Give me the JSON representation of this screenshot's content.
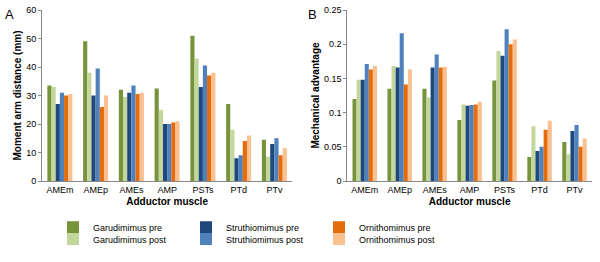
{
  "chart_data": [
    {
      "type": "bar",
      "title": "A",
      "x_label": "Adductor muscle",
      "y_label": "Moment arm distance (mm)",
      "categories": [
        "AMEm",
        "AMEp",
        "AMEs",
        "AMP",
        "PSTs",
        "PTd",
        "PTv"
      ],
      "series": [
        {
          "name": "Garudimimus pre",
          "color": "#77933C",
          "values": [
            33.5,
            49,
            32,
            32.5,
            51,
            27,
            14.5
          ]
        },
        {
          "name": "Garudimimus post",
          "color": "#C3D69B",
          "values": [
            33,
            38,
            29.5,
            25,
            43,
            18,
            8.5
          ]
        },
        {
          "name": "Struthiomimus pre",
          "color": "#1F497D",
          "values": [
            27,
            30,
            31,
            20,
            33,
            8,
            13
          ]
        },
        {
          "name": "Struthiomimus post",
          "color": "#4F81BD",
          "values": [
            31,
            39.5,
            33.5,
            20,
            40.5,
            9,
            15
          ]
        },
        {
          "name": "Ornithomimus pre",
          "color": "#E46C0A",
          "values": [
            30,
            26,
            30.5,
            20.5,
            37,
            14,
            9
          ]
        },
        {
          "name": "Ornithomimus post",
          "color": "#FAC090",
          "values": [
            30.5,
            30,
            31,
            21,
            38,
            16,
            11.5
          ]
        }
      ],
      "ylim": [
        0,
        60
      ],
      "yticks": [
        0,
        10,
        20,
        30,
        40,
        50,
        60
      ],
      "grid": false,
      "legend": "bottom"
    },
    {
      "type": "bar",
      "title": "B",
      "x_label": "Adductor muscle",
      "y_label": "Mechanical advantage",
      "categories": [
        "AMEm",
        "AMEp",
        "AMEs",
        "AMP",
        "PSTs",
        "PTd",
        "PTv"
      ],
      "series": [
        {
          "name": "Garudimimus pre",
          "color": "#77933C",
          "values": [
            0.12,
            0.135,
            0.135,
            0.089,
            0.147,
            0.035,
            0.057
          ]
        },
        {
          "name": "Garudimimus post",
          "color": "#C3D69B",
          "values": [
            0.148,
            0.168,
            0.122,
            0.112,
            0.19,
            0.08,
            0.039
          ]
        },
        {
          "name": "Struthiomimus pre",
          "color": "#1F497D",
          "values": [
            0.148,
            0.166,
            0.166,
            0.11,
            0.183,
            0.044,
            0.073
          ]
        },
        {
          "name": "Struthiomimus post",
          "color": "#4F81BD",
          "values": [
            0.171,
            0.216,
            0.185,
            0.111,
            0.222,
            0.05,
            0.082
          ]
        },
        {
          "name": "Ornithomimus pre",
          "color": "#E46C0A",
          "values": [
            0.163,
            0.141,
            0.166,
            0.112,
            0.2,
            0.075,
            0.05
          ]
        },
        {
          "name": "Ornithomimus post",
          "color": "#FAC090",
          "values": [
            0.168,
            0.163,
            0.167,
            0.116,
            0.207,
            0.088,
            0.062
          ]
        }
      ],
      "ylim": [
        0,
        0.25
      ],
      "yticks": [
        0,
        0.05,
        0.1,
        0.15,
        0.2,
        0.25
      ],
      "grid": false
    }
  ]
}
